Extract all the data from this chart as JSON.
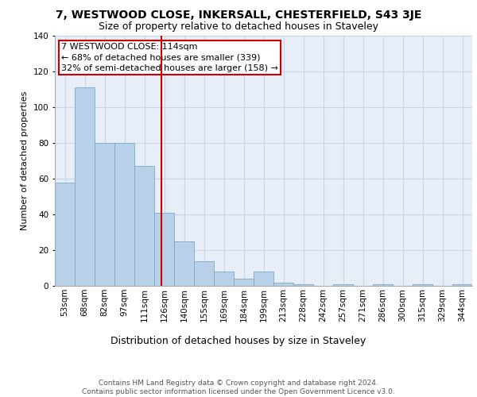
{
  "title1": "7, WESTWOOD CLOSE, INKERSALL, CHESTERFIELD, S43 3JE",
  "title2": "Size of property relative to detached houses in Staveley",
  "xlabel": "Distribution of detached houses by size in Staveley",
  "ylabel": "Number of detached properties",
  "footer1": "Contains HM Land Registry data © Crown copyright and database right 2024.",
  "footer2": "Contains public sector information licensed under the Open Government Licence v3.0.",
  "bin_labels": [
    "53sqm",
    "68sqm",
    "82sqm",
    "97sqm",
    "111sqm",
    "126sqm",
    "140sqm",
    "155sqm",
    "169sqm",
    "184sqm",
    "199sqm",
    "213sqm",
    "228sqm",
    "242sqm",
    "257sqm",
    "271sqm",
    "286sqm",
    "300sqm",
    "315sqm",
    "329sqm",
    "344sqm"
  ],
  "bar_heights": [
    58,
    111,
    80,
    80,
    67,
    41,
    25,
    14,
    8,
    4,
    8,
    2,
    1,
    0,
    1,
    0,
    1,
    0,
    1,
    0,
    1
  ],
  "bar_color": "#b8d0e8",
  "bar_edge_color": "#7aaac8",
  "vline_x_index": 4.85,
  "vline_color": "#cc0000",
  "annotation_text": "7 WESTWOOD CLOSE: 114sqm\n← 68% of detached houses are smaller (339)\n32% of semi-detached houses are larger (158) →",
  "annotation_box_color": "#cc0000",
  "ylim": [
    0,
    140
  ],
  "yticks": [
    0,
    20,
    40,
    60,
    80,
    100,
    120,
    140
  ],
  "grid_color": "#c8d4e8",
  "background_color": "#e8eef8",
  "title1_fontsize": 10,
  "title2_fontsize": 9,
  "xlabel_fontsize": 9,
  "ylabel_fontsize": 8,
  "tick_fontsize": 7.5,
  "annotation_fontsize": 8,
  "footer_fontsize": 6.5
}
